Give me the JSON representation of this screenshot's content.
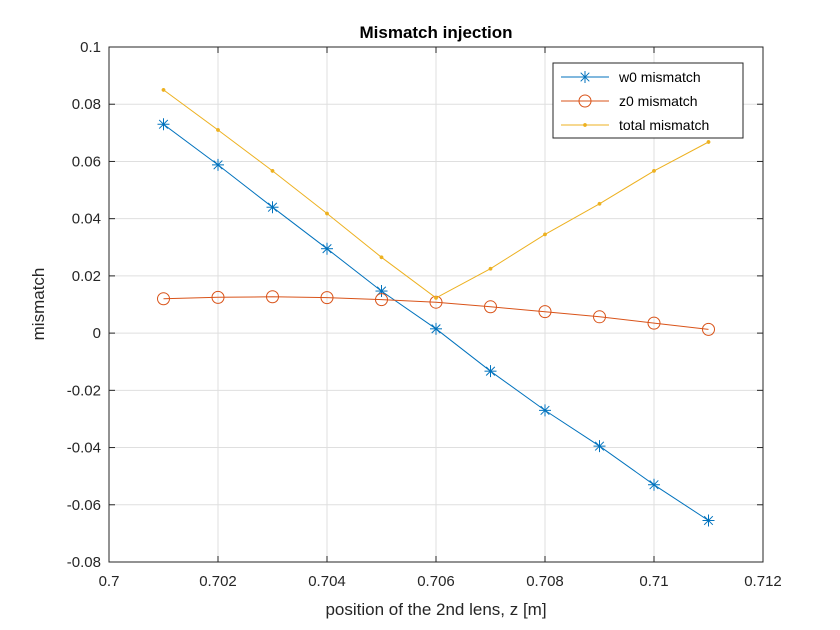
{
  "chart_data": {
    "type": "line",
    "title": "Mismatch injection",
    "xlabel": "position of the 2nd lens, z [m]",
    "ylabel": "mismatch",
    "xlim": [
      0.7,
      0.712
    ],
    "ylim": [
      -0.08,
      0.1
    ],
    "xticks": [
      0.7,
      0.702,
      0.704,
      0.706,
      0.708,
      0.71,
      0.712
    ],
    "xtick_labels": [
      "0.7",
      "0.702",
      "0.704",
      "0.706",
      "0.708",
      "0.71",
      "0.712"
    ],
    "yticks": [
      -0.08,
      -0.06,
      -0.04,
      -0.02,
      0,
      0.02,
      0.04,
      0.06,
      0.08,
      0.1
    ],
    "ytick_labels": [
      "-0.08",
      "-0.06",
      "-0.04",
      "-0.02",
      "0",
      "0.02",
      "0.04",
      "0.06",
      "0.08",
      "0.1"
    ],
    "grid": true,
    "legend_position": "top-right",
    "x": [
      0.701,
      0.702,
      0.703,
      0.704,
      0.705,
      0.706,
      0.707,
      0.708,
      0.709,
      0.71,
      0.711
    ],
    "series": [
      {
        "name": "w0 mismatch",
        "color": "#0072BD",
        "marker": "asterisk",
        "values": [
          0.073,
          0.0588,
          0.044,
          0.0295,
          0.0147,
          0.0015,
          -0.0133,
          -0.027,
          -0.0395,
          -0.053,
          -0.0655
        ]
      },
      {
        "name": "z0 mismatch",
        "color": "#D95319",
        "marker": "circle",
        "values": [
          0.012,
          0.0125,
          0.0127,
          0.0124,
          0.0117,
          0.0108,
          0.0092,
          0.0075,
          0.0057,
          0.0035,
          0.0013
        ]
      },
      {
        "name": "total mismatch",
        "color": "#EDB120",
        "marker": "dot",
        "values": [
          0.085,
          0.071,
          0.0567,
          0.0418,
          0.0265,
          0.0123,
          0.0225,
          0.0345,
          0.0452,
          0.0567,
          0.0668
        ]
      }
    ]
  }
}
